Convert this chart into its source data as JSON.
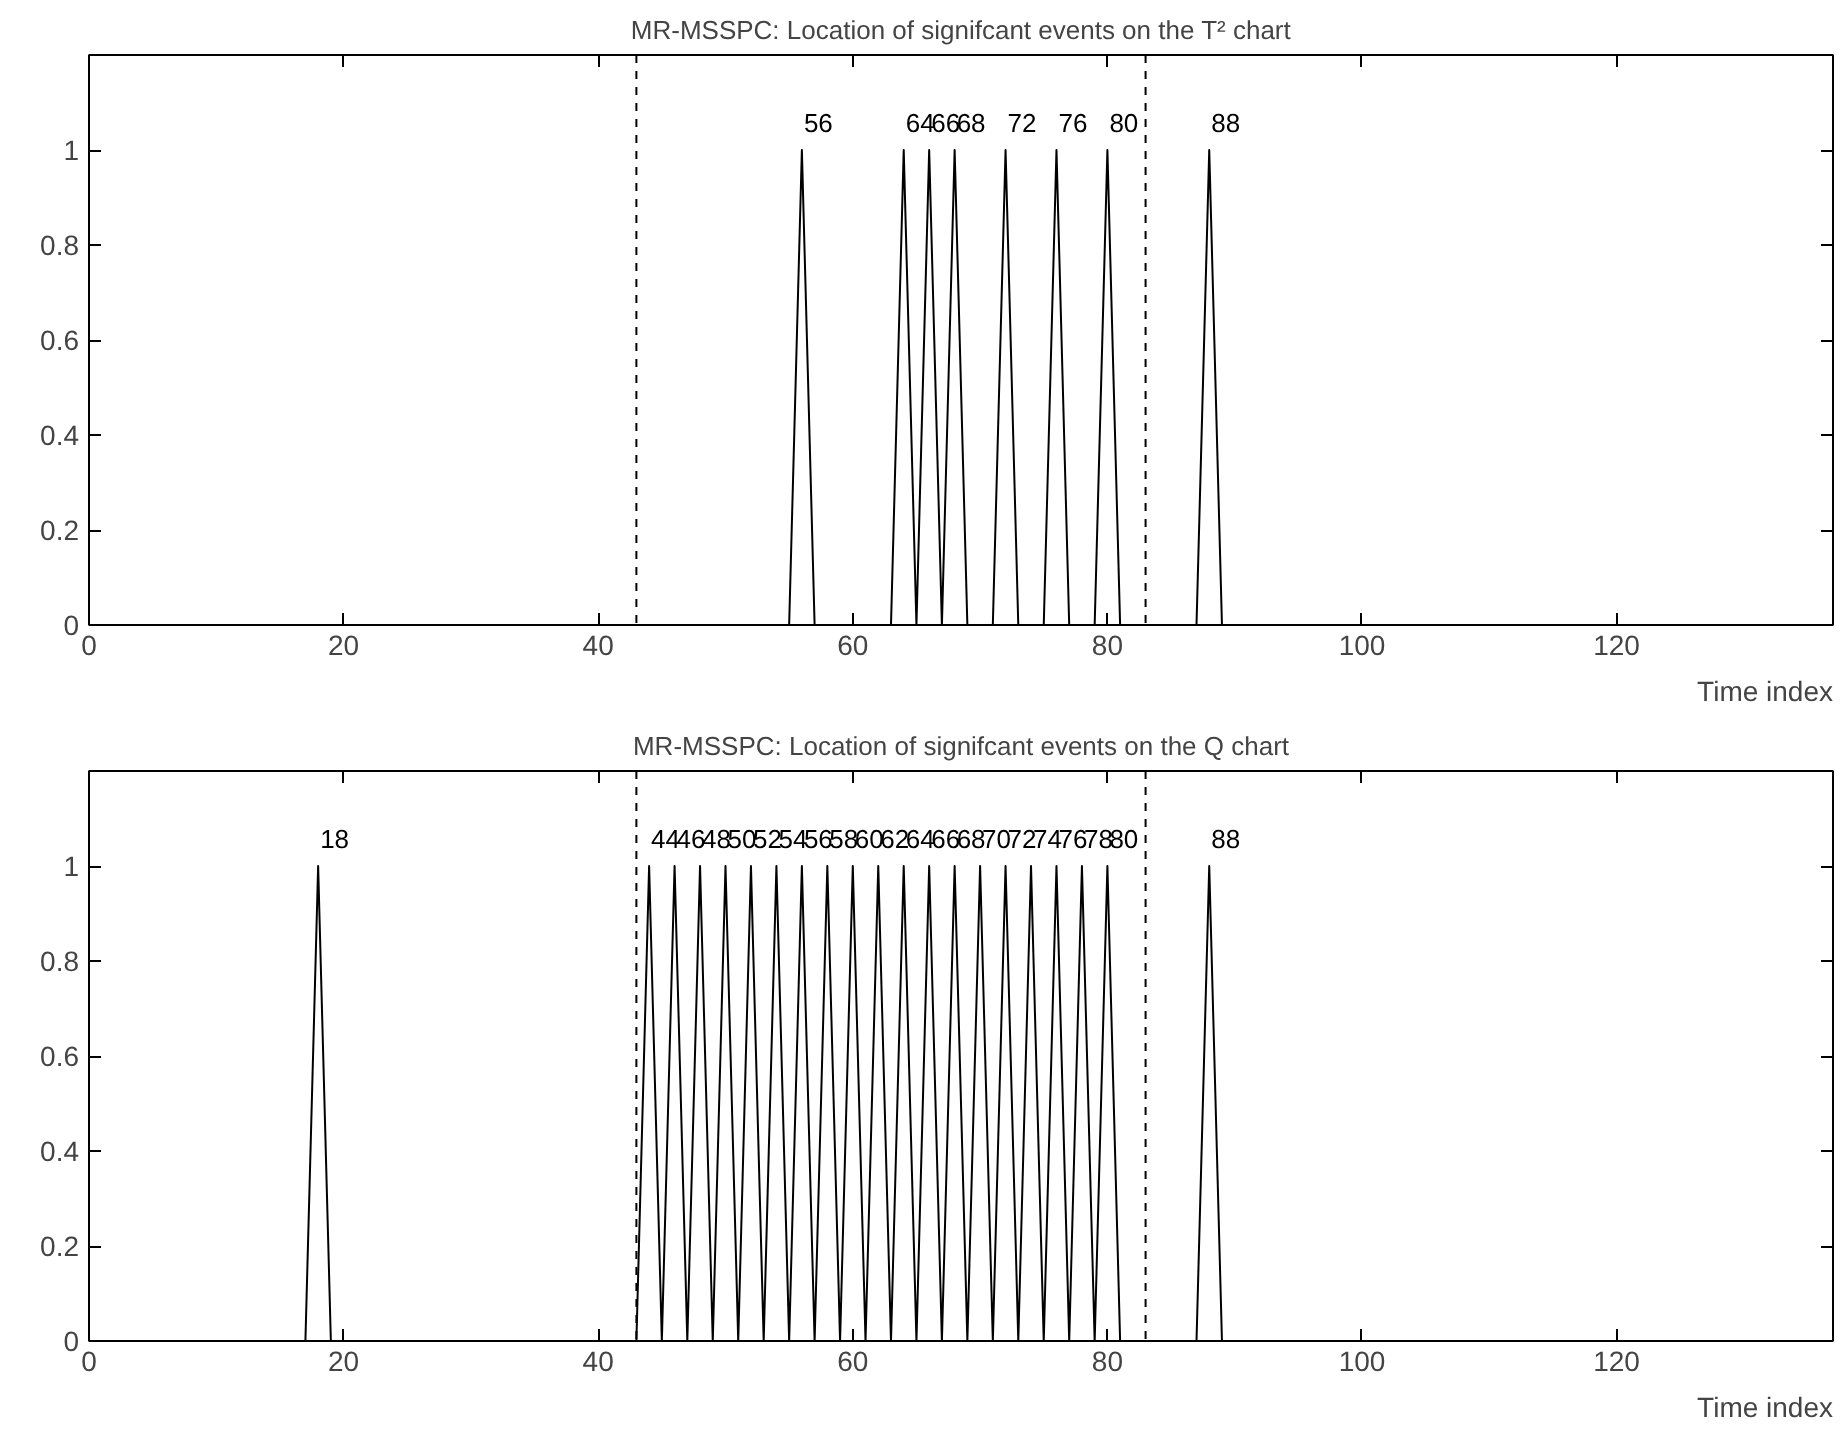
{
  "chart_data": [
    {
      "type": "line",
      "title": "MR-MSSPC: Location of signifcant events on the T² chart",
      "xlabel": "Time index",
      "color": "#000000",
      "grid": false,
      "marker": "none",
      "line_style": "solid",
      "x": [
        1,
        55,
        56,
        57,
        63,
        64,
        65,
        66,
        67,
        68,
        69,
        71,
        72,
        73,
        75,
        76,
        77,
        79,
        80,
        81,
        87,
        88,
        89,
        137
      ],
      "values": [
        0,
        0,
        1,
        0,
        0,
        1,
        0,
        1,
        0,
        1,
        0,
        0,
        1,
        0,
        0,
        1,
        0,
        0,
        1,
        0,
        0,
        1,
        0,
        0
      ],
      "xlim": [
        0,
        137
      ],
      "ylim": [
        0,
        1.2
      ],
      "xticks": [
        0,
        20,
        40,
        60,
        80,
        100,
        120
      ],
      "yticks": [
        0,
        0.2,
        0.4,
        0.6,
        0.8,
        1
      ],
      "ref_lines": [
        {
          "axis": "x",
          "value": 43,
          "line_style": "dashed"
        },
        {
          "axis": "x",
          "value": 83,
          "line_style": "dashed"
        }
      ],
      "annotations": [
        {
          "text": "56",
          "x": 56,
          "y": 1
        },
        {
          "text": "64",
          "x": 64,
          "y": 1
        },
        {
          "text": "66",
          "x": 66,
          "y": 1
        },
        {
          "text": "68",
          "x": 68,
          "y": 1
        },
        {
          "text": "72",
          "x": 72,
          "y": 1
        },
        {
          "text": "76",
          "x": 76,
          "y": 1
        },
        {
          "text": "80",
          "x": 80,
          "y": 1
        },
        {
          "text": "88",
          "x": 88,
          "y": 1
        }
      ]
    },
    {
      "type": "line",
      "title": "MR-MSSPC: Location of signifcant events on the Q chart",
      "xlabel": "Time index",
      "color": "#000000",
      "grid": false,
      "marker": "none",
      "line_style": "solid",
      "x": [
        1,
        17,
        18,
        19,
        43,
        44,
        45,
        46,
        47,
        48,
        49,
        50,
        51,
        52,
        53,
        54,
        55,
        56,
        57,
        58,
        59,
        60,
        61,
        62,
        63,
        64,
        65,
        66,
        67,
        68,
        69,
        70,
        71,
        72,
        73,
        74,
        75,
        76,
        77,
        78,
        79,
        80,
        81,
        87,
        88,
        89,
        137
      ],
      "values": [
        0,
        0,
        1,
        0,
        0,
        1,
        0,
        1,
        0,
        1,
        0,
        1,
        0,
        1,
        0,
        1,
        0,
        1,
        0,
        1,
        0,
        1,
        0,
        1,
        0,
        1,
        0,
        1,
        0,
        1,
        0,
        1,
        0,
        1,
        0,
        1,
        0,
        1,
        0,
        1,
        0,
        1,
        0,
        0,
        1,
        0,
        0
      ],
      "xlim": [
        0,
        137
      ],
      "ylim": [
        0,
        1.2
      ],
      "xticks": [
        0,
        20,
        40,
        60,
        80,
        100,
        120
      ],
      "yticks": [
        0,
        0.2,
        0.4,
        0.6,
        0.8,
        1
      ],
      "ref_lines": [
        {
          "axis": "x",
          "value": 43,
          "line_style": "dashed"
        },
        {
          "axis": "x",
          "value": 83,
          "line_style": "dashed"
        }
      ],
      "annotations": [
        {
          "text": "18",
          "x": 18,
          "y": 1
        },
        {
          "text": "44",
          "x": 44,
          "y": 1
        },
        {
          "text": "46",
          "x": 46,
          "y": 1
        },
        {
          "text": "48",
          "x": 48,
          "y": 1
        },
        {
          "text": "50",
          "x": 50,
          "y": 1
        },
        {
          "text": "52",
          "x": 52,
          "y": 1
        },
        {
          "text": "54",
          "x": 54,
          "y": 1
        },
        {
          "text": "56",
          "x": 56,
          "y": 1
        },
        {
          "text": "58",
          "x": 58,
          "y": 1
        },
        {
          "text": "60",
          "x": 60,
          "y": 1
        },
        {
          "text": "62",
          "x": 62,
          "y": 1
        },
        {
          "text": "64",
          "x": 64,
          "y": 1
        },
        {
          "text": "66",
          "x": 66,
          "y": 1
        },
        {
          "text": "68",
          "x": 68,
          "y": 1
        },
        {
          "text": "70",
          "x": 70,
          "y": 1
        },
        {
          "text": "72",
          "x": 72,
          "y": 1
        },
        {
          "text": "74",
          "x": 74,
          "y": 1
        },
        {
          "text": "76",
          "x": 76,
          "y": 1
        },
        {
          "text": "78",
          "x": 78,
          "y": 1
        },
        {
          "text": "80",
          "x": 80,
          "y": 1
        },
        {
          "text": "88",
          "x": 88,
          "y": 1
        }
      ]
    }
  ]
}
